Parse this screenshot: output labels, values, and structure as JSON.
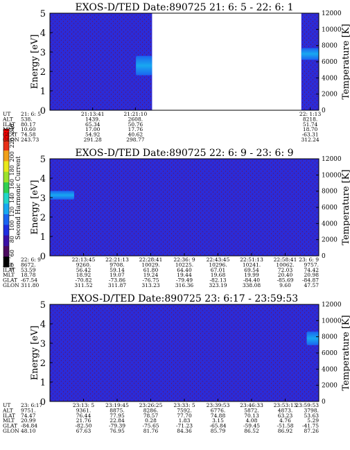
{
  "colors": {
    "background": "#ffffff",
    "spectrogram_base": "#2b2bd8",
    "spectrogram_speckle": "#5a1a7a",
    "data_gap": "#ffffff",
    "colorbar": [
      "#000000",
      "#4b0a5e",
      "#3a0fa6",
      "#1f2fe0",
      "#1b64f0",
      "#18a8f0",
      "#22d6c8",
      "#30d050",
      "#9be22a",
      "#e8e81a",
      "#f0a018",
      "#e83018",
      "#ff0000"
    ]
  },
  "colorbar": {
    "label": "Second Harmonic Current",
    "ticks": [
      "40",
      "60",
      "80",
      "100",
      "120",
      "140",
      "160",
      "180",
      "200",
      "220",
      "240"
    ]
  },
  "chart_data": [
    {
      "type": "heatmap",
      "title": "EXOS-D/TED   Date:890725  21: 6: 5 - 22: 6: 1",
      "ylabel": "Energy [eV]",
      "ylim": [
        0,
        5
      ],
      "yticks": [
        "0",
        "1",
        "2",
        "3",
        "4",
        "5"
      ],
      "y2label": "Temperature [K]",
      "y2lim": [
        0,
        12000
      ],
      "y2ticks": [
        "0",
        "2000",
        "4000",
        "6000",
        "8000",
        "10000",
        "12000"
      ],
      "row_labels": [
        "UT",
        "ALT",
        "ILAT",
        "MLT",
        "GLAT",
        "GLON"
      ],
      "columns": [
        {
          "x": 0.0,
          "values": [
            "21: 6: 5",
            "538.",
            "80.17",
            "10.60",
            "74.58",
            "243.73"
          ]
        },
        {
          "x": 0.159,
          "values": [
            "21:13:41",
            "1439.",
            "65.34",
            "17.00",
            "54.92",
            "291.28"
          ]
        },
        {
          "x": 0.318,
          "values": [
            "21:21:10",
            "2608.",
            "50.76",
            "17.76",
            "40.62",
            "298.77"
          ]
        },
        {
          "x": 0.968,
          "values": [
            "22: 1:13",
            "8218.",
            "51.74",
            "18.70",
            "-63.31",
            "312.24"
          ]
        }
      ],
      "data_gap": [
        0.38,
        0.935
      ],
      "hot_blobs": [
        {
          "x": [
            0.32,
            0.38
          ],
          "y": [
            1.8,
            2.8
          ],
          "temperature": 6500
        },
        {
          "x": [
            0.935,
            1.0
          ],
          "y": [
            2.6,
            3.2
          ],
          "temperature": 7200
        }
      ]
    },
    {
      "type": "heatmap",
      "title": "EXOS-D/TED   Date:890725  22: 6: 9 - 23: 6: 9",
      "ylabel": "Energy [eV]",
      "ylim": [
        0,
        5
      ],
      "yticks": [
        "0",
        "1",
        "2",
        "3",
        "4",
        "5"
      ],
      "y2label": "Temperature [K]",
      "y2lim": [
        0,
        12000
      ],
      "y2ticks": [
        "0",
        "2000",
        "4000",
        "6000",
        "8000",
        "10000",
        "12000"
      ],
      "row_labels": [
        "UT",
        "ALT",
        "ILAT",
        "MLT",
        "GLAT",
        "GLON"
      ],
      "columns": [
        {
          "x": 0.0,
          "values": [
            "22: 6: 9",
            "8672.",
            "53.59",
            "18.78",
            "-67.54",
            "311.80"
          ]
        },
        {
          "x": 0.125,
          "values": [
            "22:13:45",
            "9260.",
            "56.42",
            "18.92",
            "-70.82",
            "311.52"
          ]
        },
        {
          "x": 0.25,
          "values": [
            "22:21:13",
            "9708.",
            "59.14",
            "19.07",
            "-73.86",
            "311.87"
          ]
        },
        {
          "x": 0.375,
          "values": [
            "22:28:41",
            "10029.",
            "61.80",
            "19.24",
            "-76.75",
            "313.23"
          ]
        },
        {
          "x": 0.5,
          "values": [
            "22:36: 9",
            "10225.",
            "64.40",
            "19.44",
            "-79.49",
            "316.36"
          ]
        },
        {
          "x": 0.625,
          "values": [
            "22:43:45",
            "10296.",
            "67.01",
            "19.68",
            "-82.13",
            "323.19"
          ]
        },
        {
          "x": 0.75,
          "values": [
            "22:51:13",
            "10241.",
            "69.54",
            "19.99",
            "-84.40",
            "338.08"
          ]
        },
        {
          "x": 0.875,
          "values": [
            "22:58:41",
            "10062.",
            "72.03",
            "20.40",
            "-85.69",
            "9.60"
          ]
        },
        {
          "x": 1.0,
          "values": [
            "23: 6: 9",
            "9757.",
            "74.42",
            "20.98",
            "-84.87",
            "47.57"
          ]
        }
      ],
      "hot_blobs": [
        {
          "x": [
            0.0,
            0.09
          ],
          "y": [
            2.9,
            3.35
          ],
          "temperature": 7800
        }
      ]
    },
    {
      "type": "heatmap",
      "title": "EXOS-D/TED   Date:890725  23: 6:17 - 23:59:53",
      "ylabel": "Energy [eV]",
      "ylim": [
        0,
        5
      ],
      "yticks": [
        "0",
        "1",
        "2",
        "3",
        "4",
        "5"
      ],
      "y2label": "Temperature [K]",
      "y2lim": [
        0,
        12000
      ],
      "y2ticks": [
        "0",
        "2000",
        "4000",
        "6000",
        "8000",
        "10000",
        "12000"
      ],
      "row_labels": [
        "UT",
        "ALT",
        "ILAT",
        "MLT",
        "GLAT",
        "GLON"
      ],
      "columns": [
        {
          "x": 0.0,
          "values": [
            "23: 6:17",
            "9751.",
            "74.47",
            "20.99",
            "-84.84",
            "48.10"
          ]
        },
        {
          "x": 0.125,
          "values": [
            "23:13: 5",
            "9361.",
            "76.44",
            "21.76",
            "-82.50",
            "67.63"
          ]
        },
        {
          "x": 0.25,
          "values": [
            "23:19:45",
            "8875.",
            "77.95",
            "22.84",
            "-79.39",
            "76.95"
          ]
        },
        {
          "x": 0.375,
          "values": [
            "23:26:25",
            "8286.",
            "78.57",
            "0.28",
            "-75.65",
            "81.76"
          ]
        },
        {
          "x": 0.5,
          "values": [
            "23:33: 5",
            "7592.",
            "77.70",
            "1.83",
            "-71.23",
            "84.36"
          ]
        },
        {
          "x": 0.625,
          "values": [
            "23:39:53",
            "6776.",
            "74.88",
            "3.15",
            "-65.84",
            "85.79"
          ]
        },
        {
          "x": 0.75,
          "values": [
            "23:46:33",
            "5872.",
            "70.13",
            "4.08",
            "-59.45",
            "86.52"
          ]
        },
        {
          "x": 0.875,
          "values": [
            "23:53:13",
            "4873.",
            "63.23",
            "4.76",
            "-51.58",
            "86.92"
          ]
        },
        {
          "x": 1.0,
          "values": [
            "23:59:53",
            "3798.",
            "53.63",
            "5.29",
            "-41.75",
            "87.26"
          ]
        }
      ],
      "hot_blobs": [
        {
          "x": [
            0.955,
            1.0
          ],
          "y": [
            2.9,
            3.6
          ],
          "temperature": 7000
        }
      ]
    }
  ]
}
